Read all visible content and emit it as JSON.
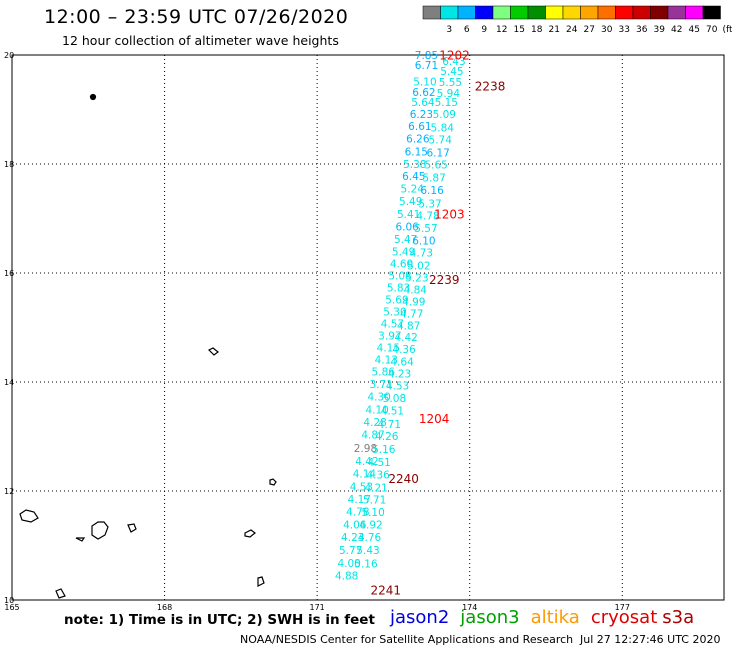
{
  "title": "12:00 – 23:59 UTC 07/26/2020",
  "subtitle": "12 hour collection of altimeter wave heights",
  "legend": {
    "unit": "(ft)",
    "bins": [
      {
        "label": "",
        "color": "#7f7f7f"
      },
      {
        "label": "3",
        "color": "#00e5e5"
      },
      {
        "label": "6",
        "color": "#00b2ff"
      },
      {
        "label": "9",
        "color": "#0000ff"
      },
      {
        "label": "12",
        "color": "#7fff7f"
      },
      {
        "label": "15",
        "color": "#00cc00"
      },
      {
        "label": "18",
        "color": "#008f00"
      },
      {
        "label": "21",
        "color": "#ffff00"
      },
      {
        "label": "24",
        "color": "#ffd700"
      },
      {
        "label": "27",
        "color": "#ffa500"
      },
      {
        "label": "30",
        "color": "#ff6f00"
      },
      {
        "label": "33",
        "color": "#ff0000"
      },
      {
        "label": "36",
        "color": "#cc0000"
      },
      {
        "label": "39",
        "color": "#800000"
      },
      {
        "label": "42",
        "color": "#993399"
      },
      {
        "label": "45",
        "color": "#ff00ff"
      },
      {
        "label": "70",
        "color": "#000000"
      }
    ]
  },
  "map": {
    "lon_range": [
      165,
      179
    ],
    "lat_range": [
      10,
      20
    ],
    "x_ticks": [
      "165",
      "168",
      "171",
      "174",
      "177"
    ],
    "x_tick_values": [
      165,
      168,
      171,
      174,
      177
    ],
    "y_ticks": [
      "10",
      "12",
      "14",
      "16",
      "18",
      "20"
    ],
    "y_tick_values": [
      10,
      12,
      14,
      16,
      18,
      20
    ],
    "pass_times": [
      {
        "label": "1202",
        "lon": 173.4,
        "lat": 19.92,
        "color": "#ff0000"
      },
      {
        "label": "2238",
        "lon": 174.1,
        "lat": 19.35,
        "color": "#8b0000"
      },
      {
        "label": "1203",
        "lon": 173.3,
        "lat": 17.0,
        "color": "#ff0000"
      },
      {
        "label": "2239",
        "lon": 173.2,
        "lat": 15.8,
        "color": "#8b0000"
      },
      {
        "label": "1204",
        "lon": 173.0,
        "lat": 13.25,
        "color": "#ff0000"
      },
      {
        "label": "2240",
        "lon": 172.4,
        "lat": 12.15,
        "color": "#8b0000"
      },
      {
        "label": "2241",
        "lon": 172.05,
        "lat": 10.1,
        "color": "#8b0000"
      }
    ],
    "wave_heights": [
      {
        "v": "7.85",
        "lon": 173.15,
        "lat": 19.93,
        "c": "#00b2ff"
      },
      {
        "v": "6.43",
        "lon": 173.69,
        "lat": 19.82,
        "c": "#00e5e5"
      },
      {
        "v": "6.71",
        "lon": 173.15,
        "lat": 19.74,
        "c": "#00b2ff"
      },
      {
        "v": "5.45",
        "lon": 173.65,
        "lat": 19.63,
        "c": "#00e5e5"
      },
      {
        "v": "5.10",
        "lon": 173.12,
        "lat": 19.44,
        "c": "#00e5e5"
      },
      {
        "v": "5.55",
        "lon": 173.62,
        "lat": 19.43,
        "c": "#00e5e5"
      },
      {
        "v": "6.62",
        "lon": 173.1,
        "lat": 19.25,
        "c": "#00b2ff"
      },
      {
        "v": "5.94",
        "lon": 173.58,
        "lat": 19.23,
        "c": "#00e5e5"
      },
      {
        "v": "5.64",
        "lon": 173.08,
        "lat": 19.06,
        "c": "#00e5e5"
      },
      {
        "v": "5.15",
        "lon": 173.54,
        "lat": 19.06,
        "c": "#00e5e5"
      },
      {
        "v": "6.23",
        "lon": 173.05,
        "lat": 18.84,
        "c": "#00b2ff"
      },
      {
        "v": "5.09",
        "lon": 173.5,
        "lat": 18.84,
        "c": "#00e5e5"
      },
      {
        "v": "6.61",
        "lon": 173.02,
        "lat": 18.62,
        "c": "#00b2ff"
      },
      {
        "v": "5.84",
        "lon": 173.46,
        "lat": 18.6,
        "c": "#00e5e5"
      },
      {
        "v": "6.26",
        "lon": 172.98,
        "lat": 18.39,
        "c": "#00b2ff"
      },
      {
        "v": "5.74",
        "lon": 173.42,
        "lat": 18.38,
        "c": "#00e5e5"
      },
      {
        "v": "6.15",
        "lon": 172.95,
        "lat": 18.16,
        "c": "#00b2ff"
      },
      {
        "v": "6.17",
        "lon": 173.38,
        "lat": 18.14,
        "c": "#00b2ff"
      },
      {
        "v": "5.38",
        "lon": 172.92,
        "lat": 17.93,
        "c": "#00e5e5"
      },
      {
        "v": "5.65",
        "lon": 173.34,
        "lat": 17.92,
        "c": "#00e5e5"
      },
      {
        "v": "6.45",
        "lon": 172.9,
        "lat": 17.71,
        "c": "#00b2ff"
      },
      {
        "v": "5.87",
        "lon": 173.3,
        "lat": 17.68,
        "c": "#00e5e5"
      },
      {
        "v": "5.24",
        "lon": 172.87,
        "lat": 17.48,
        "c": "#00e5e5"
      },
      {
        "v": "6.16",
        "lon": 173.26,
        "lat": 17.45,
        "c": "#00b2ff"
      },
      {
        "v": "5.49",
        "lon": 172.84,
        "lat": 17.25,
        "c": "#00e5e5"
      },
      {
        "v": "5.37",
        "lon": 173.22,
        "lat": 17.2,
        "c": "#00e5e5"
      },
      {
        "v": "5.41",
        "lon": 172.8,
        "lat": 17.01,
        "c": "#00e5e5"
      },
      {
        "v": "4.78",
        "lon": 173.18,
        "lat": 16.98,
        "c": "#00e5e5"
      },
      {
        "v": "6.06",
        "lon": 172.77,
        "lat": 16.78,
        "c": "#00b2ff"
      },
      {
        "v": "5.57",
        "lon": 173.14,
        "lat": 16.75,
        "c": "#00e5e5"
      },
      {
        "v": "5.47",
        "lon": 172.74,
        "lat": 16.55,
        "c": "#00e5e5"
      },
      {
        "v": "6.10",
        "lon": 173.1,
        "lat": 16.52,
        "c": "#00b2ff"
      },
      {
        "v": "5.49",
        "lon": 172.7,
        "lat": 16.32,
        "c": "#00e5e5"
      },
      {
        "v": "4.73",
        "lon": 173.05,
        "lat": 16.3,
        "c": "#00e5e5"
      },
      {
        "v": "4.60",
        "lon": 172.66,
        "lat": 16.1,
        "c": "#00e5e5"
      },
      {
        "v": "5.02",
        "lon": 173.0,
        "lat": 16.06,
        "c": "#00e5e5"
      },
      {
        "v": "5.08",
        "lon": 172.63,
        "lat": 15.88,
        "c": "#00e5e5"
      },
      {
        "v": "5.23",
        "lon": 172.96,
        "lat": 15.84,
        "c": "#00e5e5"
      },
      {
        "v": "5.83",
        "lon": 172.6,
        "lat": 15.66,
        "c": "#00e5e5"
      },
      {
        "v": "4.84",
        "lon": 172.93,
        "lat": 15.62,
        "c": "#00e5e5"
      },
      {
        "v": "5.69",
        "lon": 172.57,
        "lat": 15.44,
        "c": "#00e5e5"
      },
      {
        "v": "4.99",
        "lon": 172.9,
        "lat": 15.4,
        "c": "#00e5e5"
      },
      {
        "v": "5.30",
        "lon": 172.53,
        "lat": 15.22,
        "c": "#00e5e5"
      },
      {
        "v": "4.77",
        "lon": 172.86,
        "lat": 15.18,
        "c": "#00e5e5"
      },
      {
        "v": "4.57",
        "lon": 172.48,
        "lat": 15.0,
        "c": "#00e5e5"
      },
      {
        "v": "4.87",
        "lon": 172.8,
        "lat": 14.96,
        "c": "#00e5e5"
      },
      {
        "v": "3.97",
        "lon": 172.43,
        "lat": 14.78,
        "c": "#00e5e5"
      },
      {
        "v": "4.42",
        "lon": 172.75,
        "lat": 14.75,
        "c": "#00e5e5"
      },
      {
        "v": "4.15",
        "lon": 172.4,
        "lat": 14.56,
        "c": "#00e5e5"
      },
      {
        "v": "4.36",
        "lon": 172.71,
        "lat": 14.53,
        "c": "#00e5e5"
      },
      {
        "v": "4.13",
        "lon": 172.36,
        "lat": 14.34,
        "c": "#00e5e5"
      },
      {
        "v": "4.64",
        "lon": 172.67,
        "lat": 14.3,
        "c": "#00e5e5"
      },
      {
        "v": "5.86",
        "lon": 172.3,
        "lat": 14.12,
        "c": "#00e5e5"
      },
      {
        "v": "4.23",
        "lon": 172.62,
        "lat": 14.08,
        "c": "#00e5e5"
      },
      {
        "v": "3.71",
        "lon": 172.26,
        "lat": 13.89,
        "c": "#00e5e5"
      },
      {
        "v": "4.53",
        "lon": 172.58,
        "lat": 13.86,
        "c": "#00e5e5"
      },
      {
        "v": "4.30",
        "lon": 172.22,
        "lat": 13.66,
        "c": "#00e5e5"
      },
      {
        "v": "5.08",
        "lon": 172.52,
        "lat": 13.63,
        "c": "#00e5e5"
      },
      {
        "v": "4.10",
        "lon": 172.18,
        "lat": 13.42,
        "c": "#00e5e5"
      },
      {
        "v": "4.51",
        "lon": 172.48,
        "lat": 13.4,
        "c": "#00e5e5"
      },
      {
        "v": "4.28",
        "lon": 172.14,
        "lat": 13.19,
        "c": "#00e5e5"
      },
      {
        "v": "4.71",
        "lon": 172.42,
        "lat": 13.16,
        "c": "#00e5e5"
      },
      {
        "v": "4.87",
        "lon": 172.1,
        "lat": 12.96,
        "c": "#00e5e5"
      },
      {
        "v": "4.26",
        "lon": 172.37,
        "lat": 12.94,
        "c": "#00e5e5"
      },
      {
        "v": "2.98",
        "lon": 171.95,
        "lat": 12.72,
        "c": "#7f7f7f"
      },
      {
        "v": "5.16",
        "lon": 172.31,
        "lat": 12.7,
        "c": "#00e5e5"
      },
      {
        "v": "4.42",
        "lon": 171.98,
        "lat": 12.48,
        "c": "#00e5e5"
      },
      {
        "v": "4.51",
        "lon": 172.22,
        "lat": 12.46,
        "c": "#00e5e5"
      },
      {
        "v": "4.14",
        "lon": 171.93,
        "lat": 12.25,
        "c": "#00e5e5"
      },
      {
        "v": "4.36",
        "lon": 172.2,
        "lat": 12.23,
        "c": "#00e5e5"
      },
      {
        "v": "4.53",
        "lon": 171.87,
        "lat": 12.01,
        "c": "#00e5e5"
      },
      {
        "v": "4.21",
        "lon": 172.16,
        "lat": 11.99,
        "c": "#00e5e5"
      },
      {
        "v": "4.17",
        "lon": 171.83,
        "lat": 11.78,
        "c": "#00e5e5"
      },
      {
        "v": "5.71",
        "lon": 172.13,
        "lat": 11.77,
        "c": "#00e5e5"
      },
      {
        "v": "4.78",
        "lon": 171.8,
        "lat": 11.55,
        "c": "#00e5e5"
      },
      {
        "v": "5.10",
        "lon": 172.1,
        "lat": 11.54,
        "c": "#00e5e5"
      },
      {
        "v": "4.06",
        "lon": 171.74,
        "lat": 11.31,
        "c": "#00e5e5"
      },
      {
        "v": "4.92",
        "lon": 172.06,
        "lat": 11.31,
        "c": "#00e5e5"
      },
      {
        "v": "4.23",
        "lon": 171.7,
        "lat": 11.08,
        "c": "#00e5e5"
      },
      {
        "v": "4.76",
        "lon": 172.03,
        "lat": 11.08,
        "c": "#00e5e5"
      },
      {
        "v": "5.77",
        "lon": 171.66,
        "lat": 10.84,
        "c": "#00e5e5"
      },
      {
        "v": "5.43",
        "lon": 172.0,
        "lat": 10.84,
        "c": "#00e5e5"
      },
      {
        "v": "4.00",
        "lon": 171.63,
        "lat": 10.61,
        "c": "#00e5e5"
      },
      {
        "v": "5.16",
        "lon": 171.96,
        "lat": 10.6,
        "c": "#00e5e5"
      },
      {
        "v": "4.88",
        "lon": 171.58,
        "lat": 10.38,
        "c": "#00e5e5"
      }
    ]
  },
  "footnote": "note: 1) Time is in UTC; 2) SWH is in feet",
  "satellites": [
    {
      "name": "jason2",
      "color": "#0000dd"
    },
    {
      "name": "jason3",
      "color": "#00a000"
    },
    {
      "name": "altika",
      "color": "#ff9900"
    },
    {
      "name": "cryosat",
      "color": "#dd0000"
    },
    {
      "name": "s3a",
      "color": "#aa0000"
    }
  ],
  "credit": "NOAA/NESDIS Center for Satellite Applications and Research",
  "timestamp": "Jul 27 12:27:46 UTC 2020"
}
